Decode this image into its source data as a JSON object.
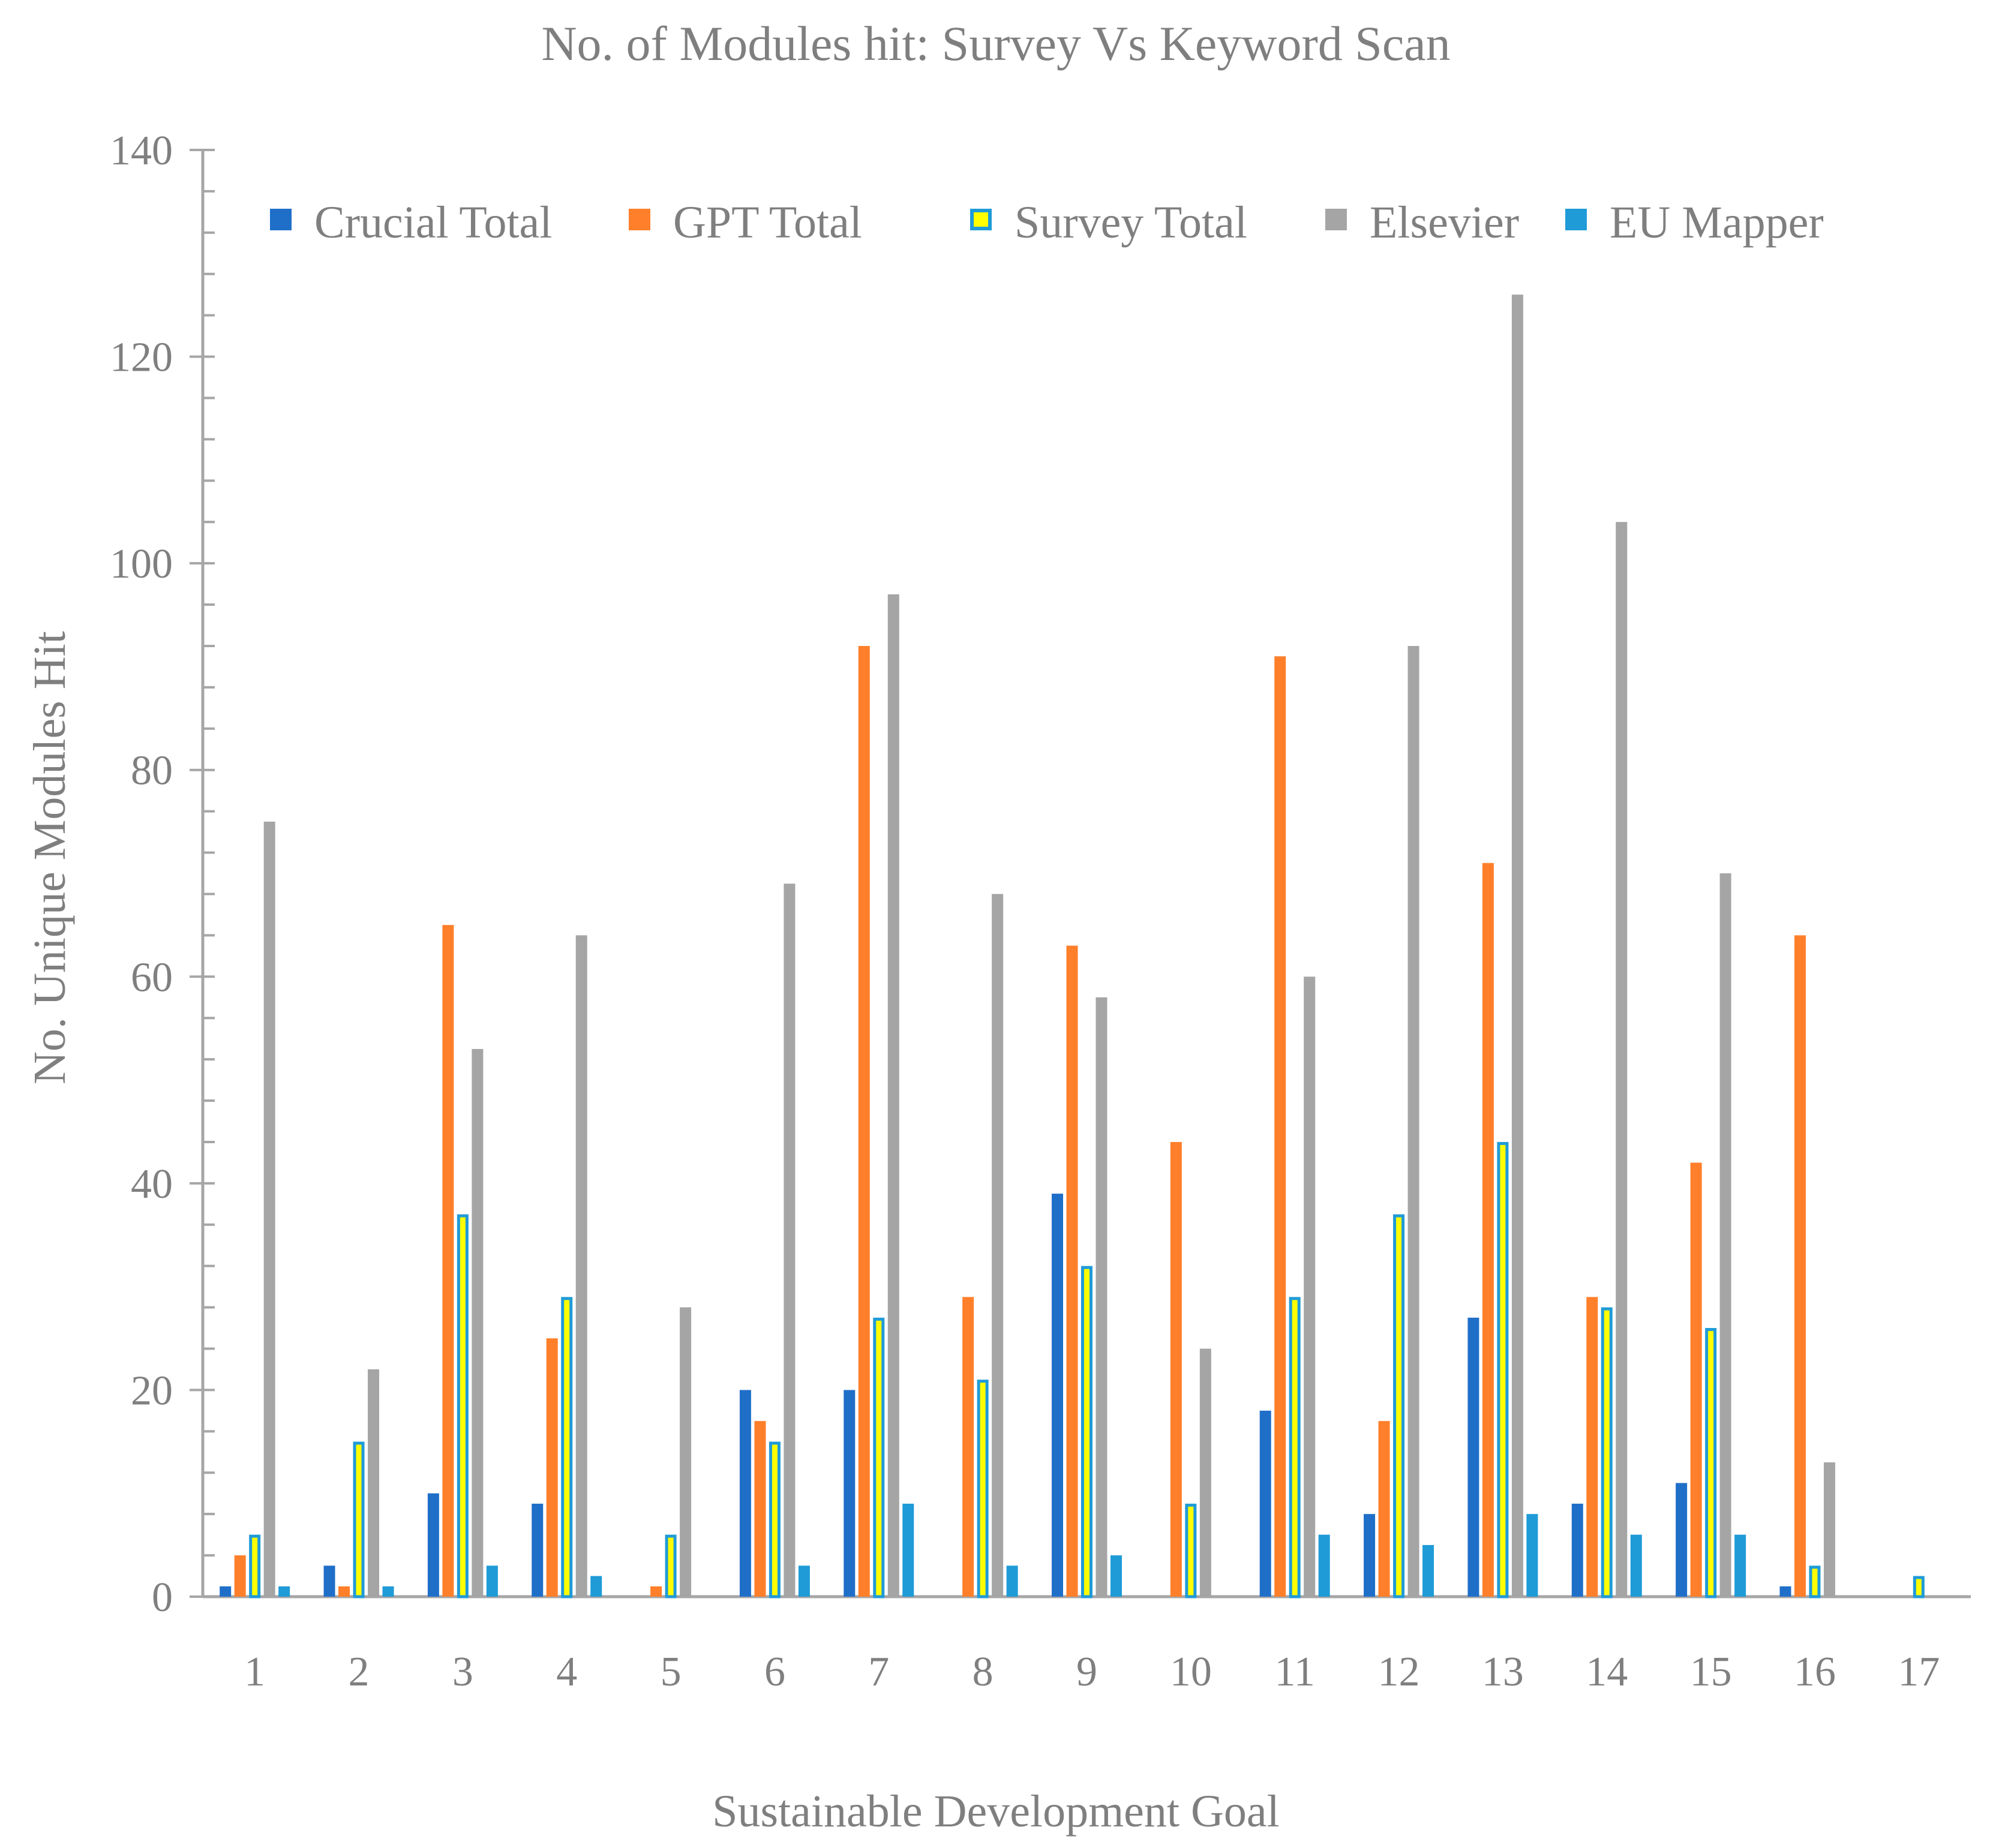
{
  "chart_data": {
    "type": "bar",
    "title": "No. of Modules hit: Survey Vs Keyword Scan",
    "xlabel": "Sustainable Development Goal",
    "ylabel": "No. Unique Modules Hit",
    "ylim": [
      0,
      140
    ],
    "y_major_step": 20,
    "y_minor_step": 4,
    "y_ticks": [
      "0",
      "20",
      "40",
      "60",
      "80",
      "100",
      "120",
      "140"
    ],
    "legend_position": "top",
    "categories": [
      "1",
      "2",
      "3",
      "4",
      "5",
      "6",
      "7",
      "8",
      "9",
      "10",
      "11",
      "12",
      "13",
      "14",
      "15",
      "16",
      "17"
    ],
    "series": [
      {
        "name": "Crucial Total",
        "color": "#1f6fc9",
        "border": "",
        "values": [
          1,
          3,
          10,
          9,
          0,
          20,
          20,
          0,
          39,
          0,
          18,
          8,
          27,
          9,
          11,
          1,
          0
        ]
      },
      {
        "name": "GPT Total",
        "color": "#ff7f2a",
        "border": "",
        "values": [
          4,
          1,
          65,
          25,
          1,
          17,
          92,
          29,
          63,
          44,
          91,
          17,
          71,
          29,
          42,
          64,
          0
        ]
      },
      {
        "name": "Survey Total",
        "color": "#ffff00",
        "border": "#1f9bd7",
        "values": [
          6,
          15,
          37,
          29,
          6,
          15,
          27,
          21,
          32,
          9,
          29,
          37,
          44,
          28,
          26,
          3,
          2
        ]
      },
      {
        "name": "Elsevier",
        "color": "#a5a5a5",
        "border": "",
        "values": [
          75,
          22,
          53,
          64,
          28,
          69,
          97,
          68,
          58,
          24,
          60,
          92,
          126,
          104,
          70,
          13,
          0
        ]
      },
      {
        "name": "EU Mapper",
        "color": "#1f9bd7",
        "border": "",
        "values": [
          1,
          1,
          3,
          2,
          0,
          3,
          9,
          3,
          4,
          0,
          6,
          5,
          8,
          6,
          6,
          0,
          0
        ]
      }
    ]
  }
}
